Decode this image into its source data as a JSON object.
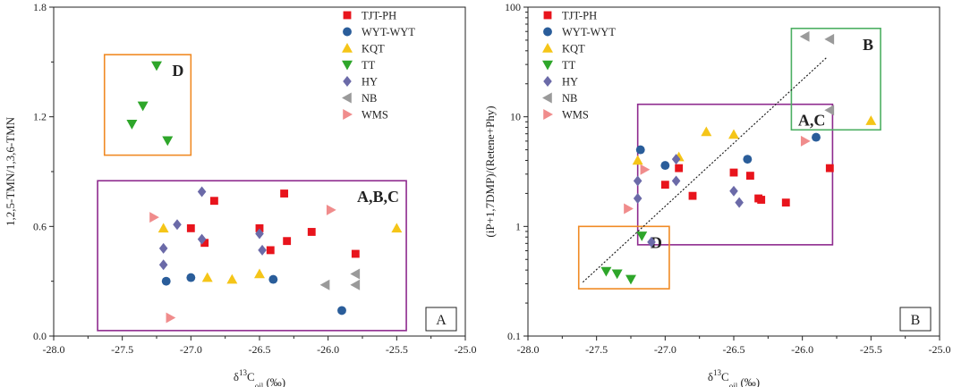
{
  "figure": {
    "legend": [
      {
        "name": "TJT-PH",
        "shape": "square",
        "color": "#e8141c"
      },
      {
        "name": "WYT-WYT",
        "shape": "circle",
        "color": "#2a5d9a"
      },
      {
        "name": "KQT",
        "shape": "triangle-up",
        "color": "#f5c518"
      },
      {
        "name": "TT",
        "shape": "triangle-down",
        "color": "#2ea62a"
      },
      {
        "name": "HY",
        "shape": "diamond",
        "color": "#6b6aa8"
      },
      {
        "name": "NB",
        "shape": "triangle-left",
        "color": "#9a9a9a"
      },
      {
        "name": "WMS",
        "shape": "triangle-right",
        "color": "#f08c8c"
      }
    ]
  },
  "chart_data": [
    {
      "type": "scatter",
      "panel_label": "A",
      "xlabel_prefix": "δ",
      "xlabel_sup": "13",
      "xlabel_main": "C",
      "xlabel_sub": "oil",
      "xlabel_unit": " (‰)",
      "ylabel": "1,2,5-TMN/1,3,6-TMN",
      "xlim": [
        -28.0,
        -25.0
      ],
      "ylim": [
        0.0,
        1.8
      ],
      "yscale": "linear",
      "xticks": [
        "-28.0",
        "-27.5",
        "-27.0",
        "-26.5",
        "-26.0",
        "-25.5",
        "-25.0"
      ],
      "yticks": [
        "0.0",
        "0.6",
        "1.2",
        "1.8"
      ],
      "series": [
        {
          "name": "TJT-PH",
          "points": [
            [
              -27.0,
              0.59
            ],
            [
              -26.9,
              0.51
            ],
            [
              -26.83,
              0.74
            ],
            [
              -26.5,
              0.59
            ],
            [
              -26.42,
              0.47
            ],
            [
              -26.32,
              0.78
            ],
            [
              -26.3,
              0.52
            ],
            [
              -26.12,
              0.57
            ],
            [
              -25.8,
              0.45
            ]
          ]
        },
        {
          "name": "WYT-WYT",
          "points": [
            [
              -27.18,
              0.3
            ],
            [
              -27.0,
              0.32
            ],
            [
              -26.4,
              0.31
            ],
            [
              -25.9,
              0.14
            ]
          ]
        },
        {
          "name": "KQT",
          "points": [
            [
              -27.2,
              0.59
            ],
            [
              -26.88,
              0.32
            ],
            [
              -26.7,
              0.31
            ],
            [
              -26.5,
              0.34
            ],
            [
              -25.5,
              0.59
            ]
          ]
        },
        {
          "name": "TT",
          "points": [
            [
              -27.25,
              1.48
            ],
            [
              -27.35,
              1.26
            ],
            [
              -27.43,
              1.16
            ],
            [
              -27.17,
              1.07
            ]
          ]
        },
        {
          "name": "HY",
          "points": [
            [
              -27.1,
              0.61
            ],
            [
              -26.92,
              0.79
            ],
            [
              -26.92,
              0.53
            ],
            [
              -27.2,
              0.48
            ],
            [
              -27.2,
              0.39
            ],
            [
              -26.5,
              0.56
            ],
            [
              -26.48,
              0.47
            ]
          ]
        },
        {
          "name": "NB",
          "points": [
            [
              -26.02,
              0.28
            ],
            [
              -25.8,
              0.34
            ],
            [
              -25.8,
              0.28
            ]
          ]
        },
        {
          "name": "WMS",
          "points": [
            [
              -27.27,
              0.65
            ],
            [
              -25.98,
              0.69
            ],
            [
              -27.15,
              0.1
            ]
          ]
        }
      ],
      "boxes": [
        {
          "label": "D",
          "x0": -27.63,
          "x1": -27.0,
          "y0": 0.99,
          "y1": 1.54,
          "color": "#f08a24"
        },
        {
          "label": "A,B,C",
          "x0": -27.68,
          "x1": -25.43,
          "y0": 0.03,
          "y1": 0.85,
          "color": "#8e2a8e"
        }
      ]
    },
    {
      "type": "scatter",
      "panel_label": "B",
      "xlabel_prefix": "δ",
      "xlabel_sup": "13",
      "xlabel_main": "C",
      "xlabel_sub": "oil",
      "xlabel_unit": " (‰)",
      "ylabel": "(iP+1,7DMP)/(Retene+Phy)",
      "xlim": [
        -28.0,
        -25.0
      ],
      "ylim": [
        0.1,
        100
      ],
      "yscale": "log",
      "xticks": [
        "-28.0",
        "-27.5",
        "-27.0",
        "-26.5",
        "-26.0",
        "-25.5",
        "-25.0"
      ],
      "yticks": [
        "0.1",
        "1",
        "10",
        "100"
      ],
      "series": [
        {
          "name": "TJT-PH",
          "points": [
            [
              -27.0,
              2.4
            ],
            [
              -26.9,
              3.4
            ],
            [
              -26.8,
              1.9
            ],
            [
              -26.5,
              3.1
            ],
            [
              -26.38,
              2.9
            ],
            [
              -26.32,
              1.8
            ],
            [
              -26.3,
              1.75
            ],
            [
              -26.12,
              1.65
            ],
            [
              -25.8,
              3.4
            ]
          ]
        },
        {
          "name": "WYT-WYT",
          "points": [
            [
              -27.18,
              5.0
            ],
            [
              -27.0,
              3.6
            ],
            [
              -26.4,
              4.1
            ],
            [
              -25.9,
              6.5
            ]
          ]
        },
        {
          "name": "KQT",
          "points": [
            [
              -27.2,
              4.0
            ],
            [
              -26.9,
              4.3
            ],
            [
              -26.7,
              7.3
            ],
            [
              -26.5,
              6.9
            ],
            [
              -25.5,
              9.2
            ]
          ]
        },
        {
          "name": "TT",
          "points": [
            [
              -27.17,
              0.82
            ],
            [
              -27.43,
              0.39
            ],
            [
              -27.35,
              0.37
            ],
            [
              -27.25,
              0.33
            ]
          ]
        },
        {
          "name": "HY",
          "points": [
            [
              -27.2,
              2.6
            ],
            [
              -27.2,
              1.8
            ],
            [
              -26.92,
              4.1
            ],
            [
              -26.92,
              2.6
            ],
            [
              -26.5,
              2.1
            ],
            [
              -26.46,
              1.65
            ],
            [
              -27.1,
              0.72
            ]
          ]
        },
        {
          "name": "NB",
          "points": [
            [
              -25.98,
              54
            ],
            [
              -25.8,
              51
            ],
            [
              -25.8,
              11.5
            ]
          ]
        },
        {
          "name": "WMS",
          "points": [
            [
              -27.27,
              1.45
            ],
            [
              -27.15,
              3.3
            ],
            [
              -25.98,
              6.0
            ]
          ]
        }
      ],
      "boxes": [
        {
          "label": "A,C",
          "x0": -27.2,
          "x1": -25.78,
          "y0": 0.68,
          "y1": 13.0,
          "color": "#8e2a8e"
        },
        {
          "label": "D",
          "x0": -27.63,
          "x1": -26.97,
          "y0": 0.27,
          "y1": 1.0,
          "color": "#f08a24"
        },
        {
          "label": "B",
          "x0": -26.08,
          "x1": -25.43,
          "y0": 7.6,
          "y1": 64,
          "color": "#4caf62"
        }
      ],
      "trendline": {
        "x0": -27.6,
        "y0": 0.31,
        "x1": -25.82,
        "y1": 35
      }
    }
  ]
}
